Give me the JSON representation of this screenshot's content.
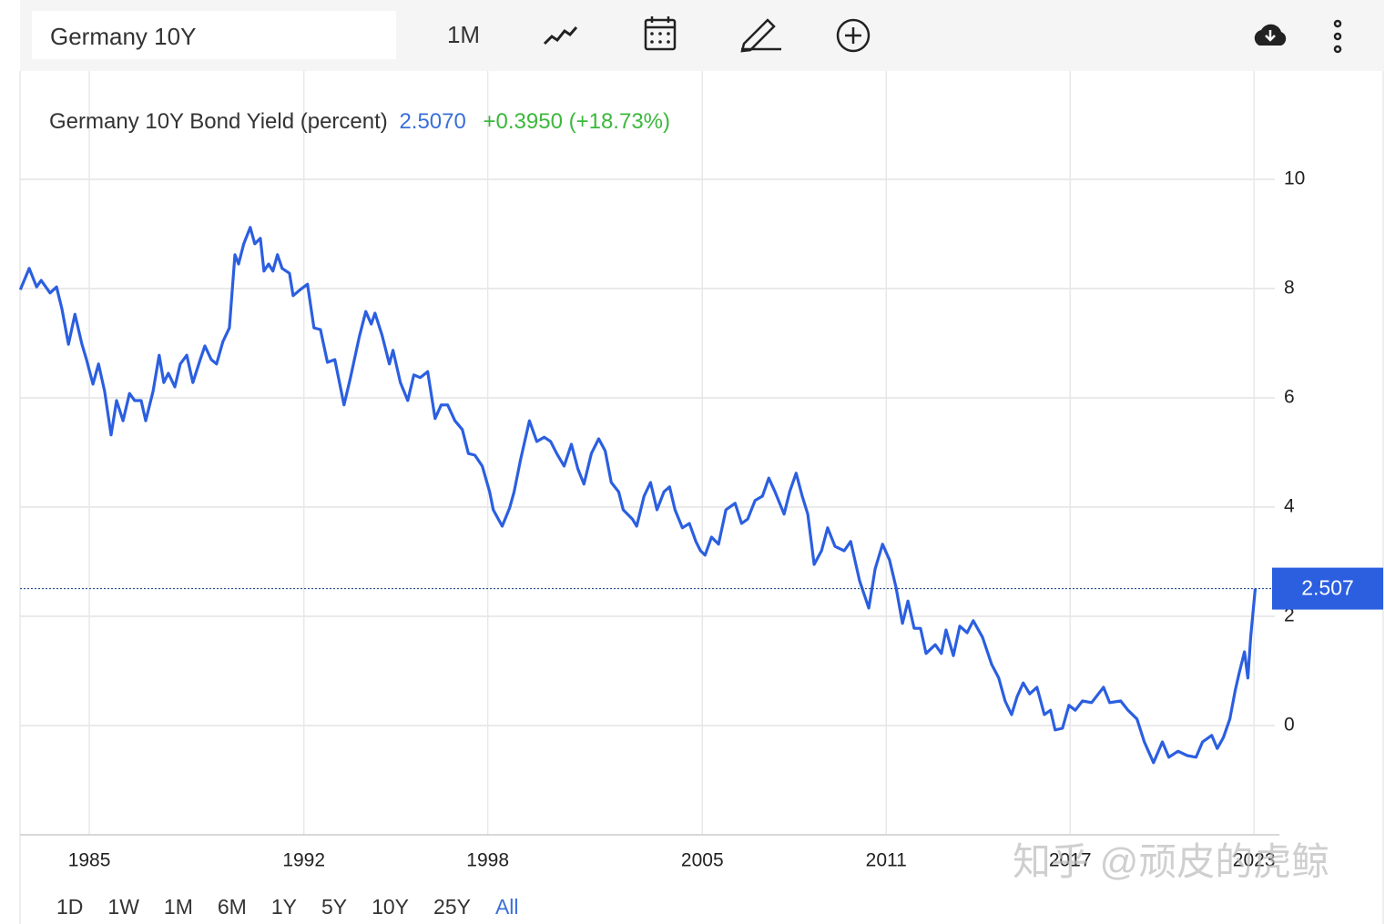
{
  "toolbar": {
    "search": "Germany 10Y",
    "interval": "1M"
  },
  "ranges": [
    "1D",
    "1W",
    "1M",
    "6M",
    "1Y",
    "5Y",
    "10Y",
    "25Y",
    "All"
  ],
  "active_range": "All",
  "watermark": "知乎 @顽皮的虎鲸",
  "chart_data": {
    "type": "line",
    "title": "Germany 10Y Bond Yield (percent)",
    "last_value": "2.5070",
    "change": "+0.3950 (+18.73%)",
    "price_tag": "2.507",
    "x": [
      1982.75,
      1983.04,
      1983.28,
      1983.43,
      1983.72,
      1983.93,
      1984.11,
      1984.32,
      1984.53,
      1984.76,
      1984.91,
      1985.12,
      1985.3,
      1985.5,
      1985.71,
      1985.89,
      1986.1,
      1986.31,
      1986.48,
      1986.69,
      1986.84,
      1987.08,
      1987.28,
      1987.43,
      1987.58,
      1987.79,
      1987.97,
      1988.18,
      1988.38,
      1988.62,
      1988.77,
      1988.98,
      1989.15,
      1989.36,
      1989.57,
      1989.75,
      1989.87,
      1990.04,
      1990.25,
      1990.4,
      1990.58,
      1990.7,
      1990.85,
      1990.99,
      1991.14,
      1991.29,
      1991.53,
      1991.65,
      1991.88,
      1992.12,
      1992.33,
      1992.54,
      1992.77,
      1993.01,
      1993.31,
      1993.52,
      1993.81,
      1994.02,
      1994.2,
      1994.32,
      1994.55,
      1994.79,
      1994.91,
      1995.15,
      1995.39,
      1995.59,
      1995.8,
      1996.04,
      1996.28,
      1996.48,
      1996.69,
      1996.93,
      1997.17,
      1997.37,
      1997.58,
      1997.82,
      1998.06,
      1998.18,
      1998.47,
      1998.71,
      1998.86,
      1999.07,
      1999.36,
      1999.6,
      1999.84,
      2000.05,
      2000.25,
      2000.49,
      2000.73,
      2000.94,
      2001.14,
      2001.38,
      2001.62,
      2001.83,
      2002.03,
      2002.27,
      2002.42,
      2002.72,
      2002.86,
      2003.1,
      2003.31,
      2003.52,
      2003.75,
      2003.93,
      2004.11,
      2004.35,
      2004.58,
      2004.79,
      2004.94,
      2005.09,
      2005.3,
      2005.53,
      2005.77,
      2006.07,
      2006.28,
      2006.48,
      2006.72,
      2006.96,
      2007.17,
      2007.37,
      2007.67,
      2007.85,
      2008.06,
      2008.26,
      2008.44,
      2008.65,
      2008.89,
      2009.09,
      2009.33,
      2009.63,
      2009.84,
      2010.13,
      2010.43,
      2010.64,
      2010.88,
      2011.11,
      2011.32,
      2011.53,
      2011.71,
      2011.91,
      2012.12,
      2012.3,
      2012.6,
      2012.8,
      2012.95,
      2013.19,
      2013.4,
      2013.64,
      2013.84,
      2014.14,
      2014.44,
      2014.67,
      2014.88,
      2015.09,
      2015.27,
      2015.47,
      2015.68,
      2015.92,
      2016.16,
      2016.36,
      2016.51,
      2016.75,
      2016.96,
      2017.17,
      2017.4,
      2017.7,
      2018.09,
      2018.29,
      2018.65,
      2018.89,
      2019.18,
      2019.42,
      2019.72,
      2020.01,
      2020.22,
      2020.52,
      2020.82,
      2021.11,
      2021.32,
      2021.62,
      2021.8,
      2022.0,
      2022.21,
      2022.39,
      2022.51,
      2022.69,
      2022.8,
      2022.89,
      2023.04
    ],
    "series": [
      {
        "name": "Germany 10Y",
        "color": "#2b5fe0",
        "values": [
          7.98,
          8.37,
          8.03,
          8.15,
          7.92,
          8.03,
          7.62,
          6.98,
          7.53,
          6.98,
          6.7,
          6.25,
          6.62,
          6.12,
          5.32,
          5.95,
          5.58,
          6.08,
          5.95,
          5.95,
          5.58,
          6.12,
          6.78,
          6.28,
          6.45,
          6.2,
          6.62,
          6.78,
          6.28,
          6.7,
          6.95,
          6.7,
          6.62,
          7.03,
          7.28,
          8.62,
          8.45,
          8.82,
          9.12,
          8.82,
          8.92,
          8.32,
          8.45,
          8.32,
          8.62,
          8.37,
          8.28,
          7.87,
          7.98,
          8.08,
          7.28,
          7.25,
          6.65,
          6.7,
          5.87,
          6.37,
          7.12,
          7.58,
          7.35,
          7.55,
          7.15,
          6.62,
          6.87,
          6.28,
          5.95,
          6.42,
          6.37,
          6.48,
          5.62,
          5.87,
          5.87,
          5.58,
          5.42,
          4.98,
          4.95,
          4.75,
          4.28,
          3.95,
          3.65,
          3.98,
          4.28,
          4.87,
          5.58,
          5.2,
          5.28,
          5.2,
          4.98,
          4.75,
          5.15,
          4.7,
          4.42,
          4.98,
          5.25,
          5.03,
          4.45,
          4.28,
          3.95,
          3.78,
          3.65,
          4.2,
          4.45,
          3.95,
          4.28,
          4.37,
          3.95,
          3.62,
          3.7,
          3.37,
          3.2,
          3.12,
          3.45,
          3.32,
          3.95,
          4.07,
          3.7,
          3.78,
          4.12,
          4.2,
          4.53,
          4.28,
          3.87,
          4.28,
          4.62,
          4.2,
          3.87,
          2.95,
          3.2,
          3.62,
          3.28,
          3.2,
          3.37,
          2.65,
          2.15,
          2.87,
          3.32,
          3.03,
          2.53,
          1.87,
          2.28,
          1.78,
          1.78,
          1.32,
          1.48,
          1.32,
          1.75,
          1.28,
          1.82,
          1.7,
          1.92,
          1.62,
          1.12,
          0.87,
          0.45,
          0.2,
          0.53,
          0.78,
          0.58,
          0.7,
          0.2,
          0.28,
          -0.08,
          -0.05,
          0.37,
          0.28,
          0.45,
          0.42,
          0.7,
          0.42,
          0.45,
          0.28,
          0.12,
          -0.3,
          -0.68,
          -0.3,
          -0.58,
          -0.47,
          -0.55,
          -0.58,
          -0.3,
          -0.18,
          -0.42,
          -0.22,
          0.12,
          0.65,
          0.95,
          1.35,
          0.87,
          1.62,
          2.507
        ]
      }
    ],
    "xlim": [
      1982.74,
      2023.53
    ],
    "ylim": [
      -2,
      12
    ],
    "xticks": [
      1985,
      1992,
      1998,
      2005,
      2011,
      2017,
      2023
    ],
    "yticks": [
      0,
      2,
      4,
      6,
      8,
      10
    ],
    "grid": true
  }
}
